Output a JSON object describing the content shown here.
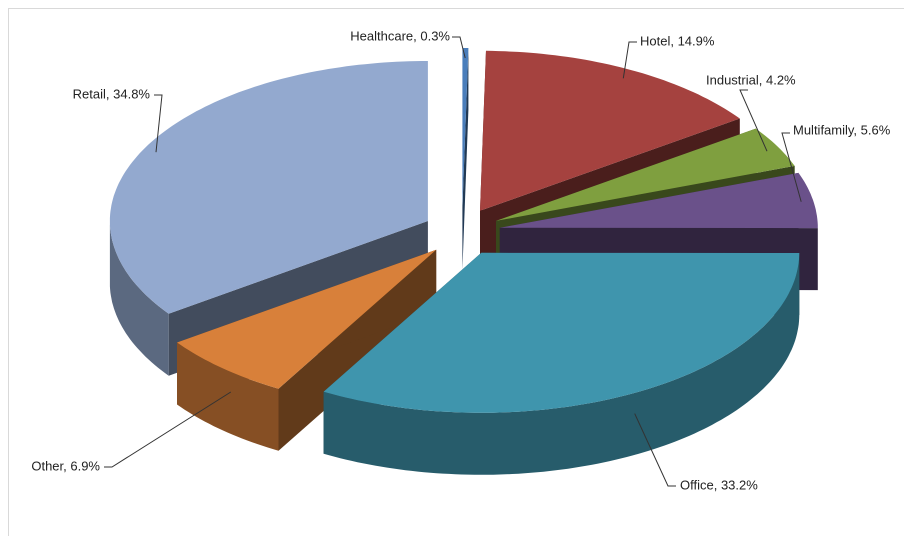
{
  "chart_data": {
    "type": "pie3d",
    "values": [
      0.3,
      14.9,
      4.2,
      5.6,
      33.2,
      6.9,
      34.8
    ],
    "value_labels": [
      "Healthcare, 0.3%",
      "Hotel, 14.9%",
      "Industrial, 4.2%",
      "Multifamily, 5.6%",
      "Office, 33.2%",
      "Other, 6.9%",
      "Retail, 34.8%"
    ],
    "colors": [
      "#4a7ebb",
      "#a5423f",
      "#7f9f3f",
      "#6a518a",
      "#3f95ad",
      "#d8803a",
      "#93a9cf"
    ]
  }
}
